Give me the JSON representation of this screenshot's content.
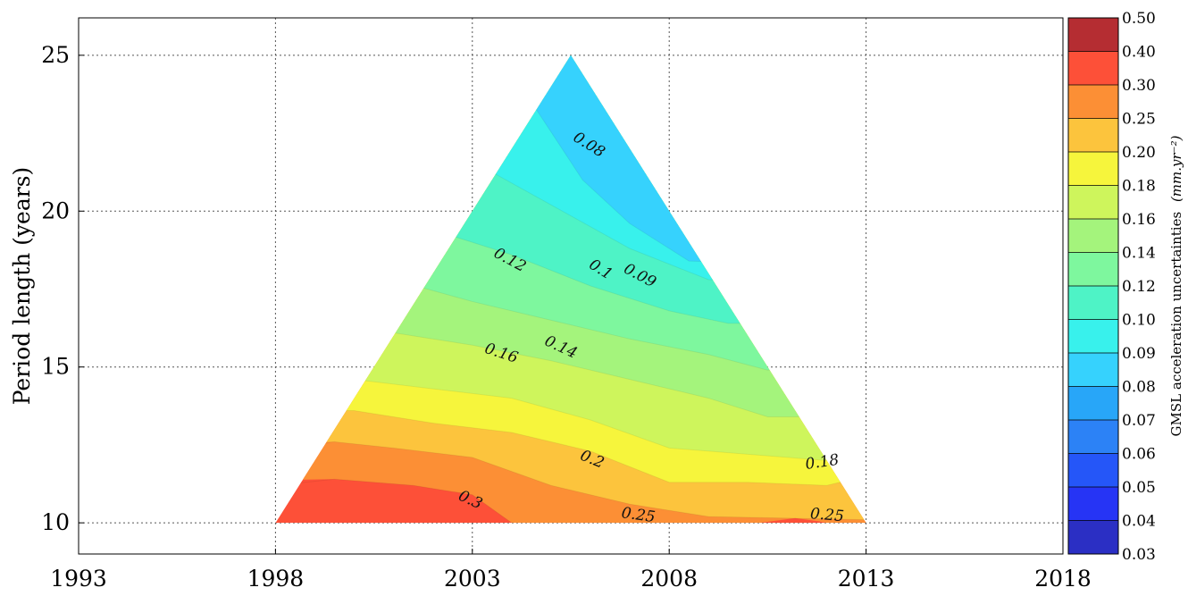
{
  "chart_data": {
    "type": "heatmap",
    "title": "",
    "xlabel": "",
    "ylabel": "Period length (years)",
    "xlim": [
      1993,
      2018
    ],
    "ylim": [
      9,
      26.2
    ],
    "x_ticks": [
      "1993",
      "1998",
      "2003",
      "2008",
      "2013",
      "2018"
    ],
    "y_ticks": [
      "10",
      "15",
      "20",
      "25"
    ],
    "grid": true,
    "region": {
      "shape": "triangle",
      "vertices": [
        [
          1998,
          10
        ],
        [
          2013,
          10
        ],
        [
          2005.5,
          25
        ]
      ]
    },
    "contour_labels": [
      {
        "text": "0.08",
        "x": 2005.9,
        "y": 22.0
      },
      {
        "text": "0.09",
        "x": 2007.2,
        "y": 17.8
      },
      {
        "text": "0.1",
        "x": 2006.2,
        "y": 18.0
      },
      {
        "text": "0.12",
        "x": 2003.9,
        "y": 18.3
      },
      {
        "text": "0.14",
        "x": 2005.2,
        "y": 15.5
      },
      {
        "text": "0.16",
        "x": 2003.7,
        "y": 15.3
      },
      {
        "text": "0.18",
        "x": 2011.9,
        "y": 11.8
      },
      {
        "text": "0.2",
        "x": 2006.0,
        "y": 11.9
      },
      {
        "text": "0.25",
        "x": 2007.2,
        "y": 10.1
      },
      {
        "text": "0.25",
        "x": 2012.0,
        "y": 10.1
      },
      {
        "text": "0.3",
        "x": 2002.9,
        "y": 10.6
      }
    ],
    "colorbar": {
      "label": "GMSL acceleration uncertainties",
      "unit": "(mm.yr⁻²)",
      "levels": [
        {
          "value": "0.03",
          "color": "#2b2fc4"
        },
        {
          "value": "0.04",
          "color": "#2634f5"
        },
        {
          "value": "0.05",
          "color": "#2556f8"
        },
        {
          "value": "0.06",
          "color": "#2c82f6"
        },
        {
          "value": "0.07",
          "color": "#28a6f8"
        },
        {
          "value": "0.08",
          "color": "#36d2fd"
        },
        {
          "value": "0.09",
          "color": "#38f1ec"
        },
        {
          "value": "0.10",
          "color": "#4ef3c6"
        },
        {
          "value": "0.12",
          "color": "#7ef79e"
        },
        {
          "value": "0.14",
          "color": "#a4f47c"
        },
        {
          "value": "0.16",
          "color": "#cef55c"
        },
        {
          "value": "0.18",
          "color": "#f6f53c"
        },
        {
          "value": "0.20",
          "color": "#fcc43d"
        },
        {
          "value": "0.25",
          "color": "#fc8f35"
        },
        {
          "value": "0.30",
          "color": "#fd5038"
        },
        {
          "value": "0.40",
          "color": "#b52d32"
        },
        {
          "value": "0.50",
          "color": ""
        }
      ]
    }
  }
}
